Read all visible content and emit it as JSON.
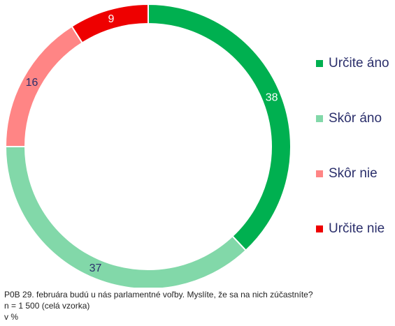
{
  "chart_data": {
    "type": "pie",
    "variant": "donut",
    "categories": [
      "Určite áno",
      "Skôr áno",
      "Skôr nie",
      "Určite nie"
    ],
    "values": [
      38,
      37,
      16,
      9
    ],
    "colors": [
      "#00b050",
      "#82d8a9",
      "#ff8585",
      "#ee0000"
    ],
    "label_colors": [
      "#ffffff",
      "#2b2f6b",
      "#2b2f6b",
      "#ffffff"
    ],
    "legend_position": "right"
  },
  "footnote": {
    "question": "P0B 29. februára budú u nás parlamentné voľby. Myslíte, že sa na nich zúčastníte?",
    "sample": "n = 1 500 (celá vzorka)",
    "unit": "v %"
  }
}
